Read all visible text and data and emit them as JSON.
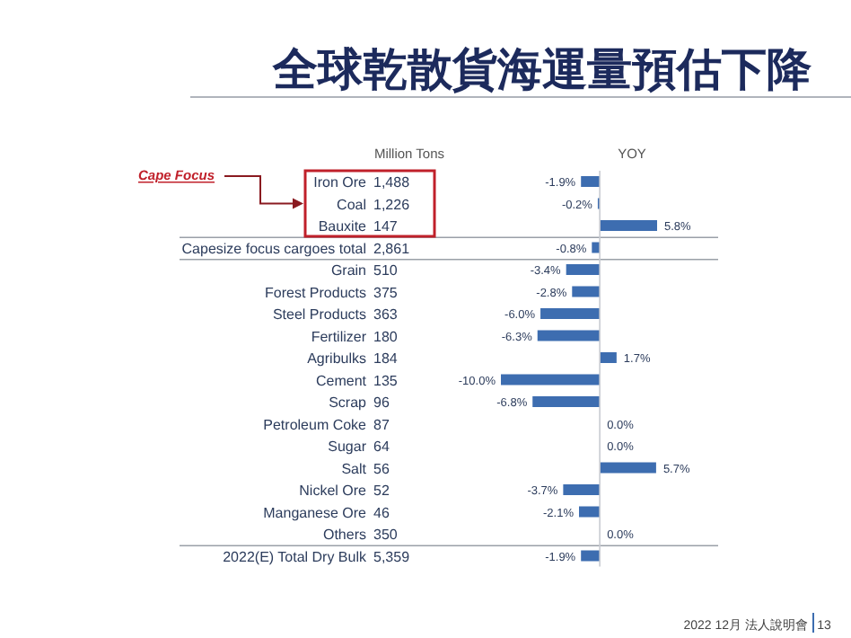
{
  "chart_data": [
    {
      "type": "other",
      "title": "全球乾散貨海運量預估下降",
      "annotations": [
        "2022 12月 法人說明會",
        "13"
      ]
    },
    {
      "type": "other",
      "title": "Million Tons",
      "annotations": [
        "Cape Focus"
      ],
      "values": [
        1488,
        1226,
        147,
        2861,
        510,
        375,
        363,
        180,
        184,
        135,
        96,
        87,
        64,
        56,
        52,
        46,
        350,
        5359
      ],
      "value_labels": [
        "1,488",
        "1,226",
        "147",
        "2,861",
        "510",
        "375",
        "363",
        "180",
        "184",
        "135",
        "96",
        "87",
        "64",
        "56",
        "52",
        "46",
        "350",
        "5,359"
      ]
    },
    {
      "type": "bar",
      "orientation": "horizontal",
      "title": "YOY",
      "color": "#3d6db0",
      "categories": [
        "Iron Ore",
        "Coal",
        "Bauxite",
        "Capesize focus cargoes total",
        "Grain",
        "Forest Products",
        "Steel Products",
        "Fertilizer",
        "Agribulks",
        "Cement",
        "Scrap",
        "Petroleum Coke",
        "Sugar",
        "Salt",
        "Nickel Ore",
        "Manganese Ore",
        "Others",
        "2022(E) Total Dry Bulk"
      ],
      "values": [
        -1.9,
        -0.2,
        5.8,
        -0.8,
        -3.4,
        -2.8,
        -6.0,
        -6.3,
        1.7,
        -10.0,
        -6.8,
        0.0,
        0.0,
        5.7,
        -3.7,
        -2.1,
        0.0,
        -1.9
      ],
      "value_labels": [
        "-1.9%",
        "-0.2%",
        "5.8%",
        "-0.8%",
        "-3.4%",
        "-2.8%",
        "-6.0%",
        "-6.3%",
        "1.7%",
        "-10.0%",
        "-6.8%",
        "0.0%",
        "0.0%",
        "5.7%",
        "-3.7%",
        "-2.1%",
        "0.0%",
        "-1.9%"
      ]
    }
  ]
}
